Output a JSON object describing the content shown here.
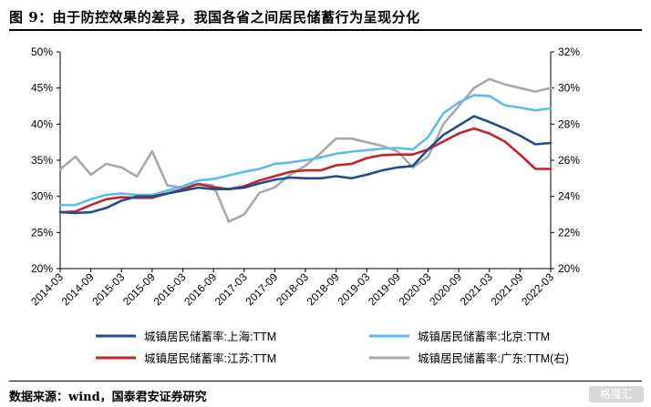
{
  "figure_title": "图 9：由于防控效果的差异，我国各省之间居民储蓄行为呈现分化",
  "source_note": "数据来源：wind，国泰君安证券研究",
  "watermark": "格隆汇",
  "chart_data": {
    "type": "line",
    "title": "",
    "xlabel": "",
    "ylabel": "",
    "ylim": [
      20,
      50
    ],
    "y2lim": [
      20,
      32
    ],
    "yticks": [
      "50%",
      "45%",
      "40%",
      "35%",
      "30%",
      "25%",
      "20%"
    ],
    "y2ticks": [
      "32%",
      "30%",
      "28%",
      "26%",
      "24%",
      "22%",
      "20%"
    ],
    "x_tick_labels": [
      "2014-03",
      "2014-09",
      "2015-03",
      "2015-09",
      "2016-03",
      "2016-09",
      "2017-03",
      "2017-09",
      "2018-03",
      "2018-09",
      "2019-03",
      "2019-09",
      "2020-03",
      "2020-09",
      "2021-03",
      "2021-09",
      "2022-03"
    ],
    "x": [
      "2014-03",
      "2014-06",
      "2014-09",
      "2014-12",
      "2015-03",
      "2015-06",
      "2015-09",
      "2015-12",
      "2016-03",
      "2016-06",
      "2016-09",
      "2016-12",
      "2017-03",
      "2017-06",
      "2017-09",
      "2017-12",
      "2018-03",
      "2018-06",
      "2018-09",
      "2018-12",
      "2019-03",
      "2019-06",
      "2019-09",
      "2019-12",
      "2020-03",
      "2020-06",
      "2020-09",
      "2020-12",
      "2021-03",
      "2021-06",
      "2021-09",
      "2021-12",
      "2022-03"
    ],
    "legend_position": "bottom",
    "series": [
      {
        "name": "城镇居民储蓄率:上海:TTM",
        "axis": "left",
        "color": "#1f4e8c",
        "values": [
          27.8,
          27.7,
          27.8,
          28.4,
          29.4,
          30.0,
          30.0,
          30.4,
          30.8,
          31.2,
          31.0,
          31.0,
          31.2,
          31.8,
          32.3,
          32.6,
          32.5,
          32.5,
          32.8,
          32.5,
          33.0,
          33.6,
          34.0,
          34.2,
          36.5,
          38.5,
          39.8,
          41.1,
          40.3,
          39.4,
          38.4,
          37.2,
          37.4
        ]
      },
      {
        "name": "城镇居民储蓄率:北京:TTM",
        "axis": "left",
        "color": "#5bbde8",
        "values": [
          28.8,
          28.8,
          29.6,
          30.2,
          30.4,
          30.2,
          30.2,
          30.8,
          31.4,
          32.2,
          32.4,
          32.9,
          33.4,
          33.8,
          34.5,
          34.7,
          35.0,
          35.4,
          35.9,
          36.2,
          36.4,
          36.6,
          36.7,
          36.5,
          38.2,
          41.5,
          43.0,
          44.0,
          43.9,
          42.6,
          42.3,
          41.9,
          42.2
        ]
      },
      {
        "name": "城镇居民储蓄率:江苏:TTM",
        "axis": "left",
        "color": "#c0242a",
        "values": [
          27.8,
          27.9,
          28.8,
          29.6,
          29.9,
          29.8,
          29.8,
          30.4,
          31.0,
          31.7,
          31.3,
          31.0,
          31.4,
          32.2,
          32.8,
          33.4,
          33.6,
          33.6,
          34.3,
          34.5,
          35.3,
          35.7,
          35.8,
          35.8,
          36.5,
          37.6,
          38.7,
          39.4,
          38.7,
          37.6,
          35.8,
          33.8,
          33.8
        ]
      },
      {
        "name": "城镇居民储蓄率:广东:TTM(右)",
        "axis": "right",
        "color": "#a8a8a8",
        "values": [
          25.5,
          26.2,
          25.2,
          25.8,
          25.6,
          25.1,
          26.5,
          24.6,
          24.5,
          24.7,
          24.6,
          22.6,
          23.0,
          24.2,
          24.5,
          25.2,
          25.7,
          26.4,
          27.2,
          27.2,
          27.0,
          26.8,
          26.5,
          25.6,
          26.2,
          28.0,
          29.0,
          30.0,
          30.5,
          30.2,
          30.0,
          29.8,
          30.0
        ]
      }
    ]
  }
}
